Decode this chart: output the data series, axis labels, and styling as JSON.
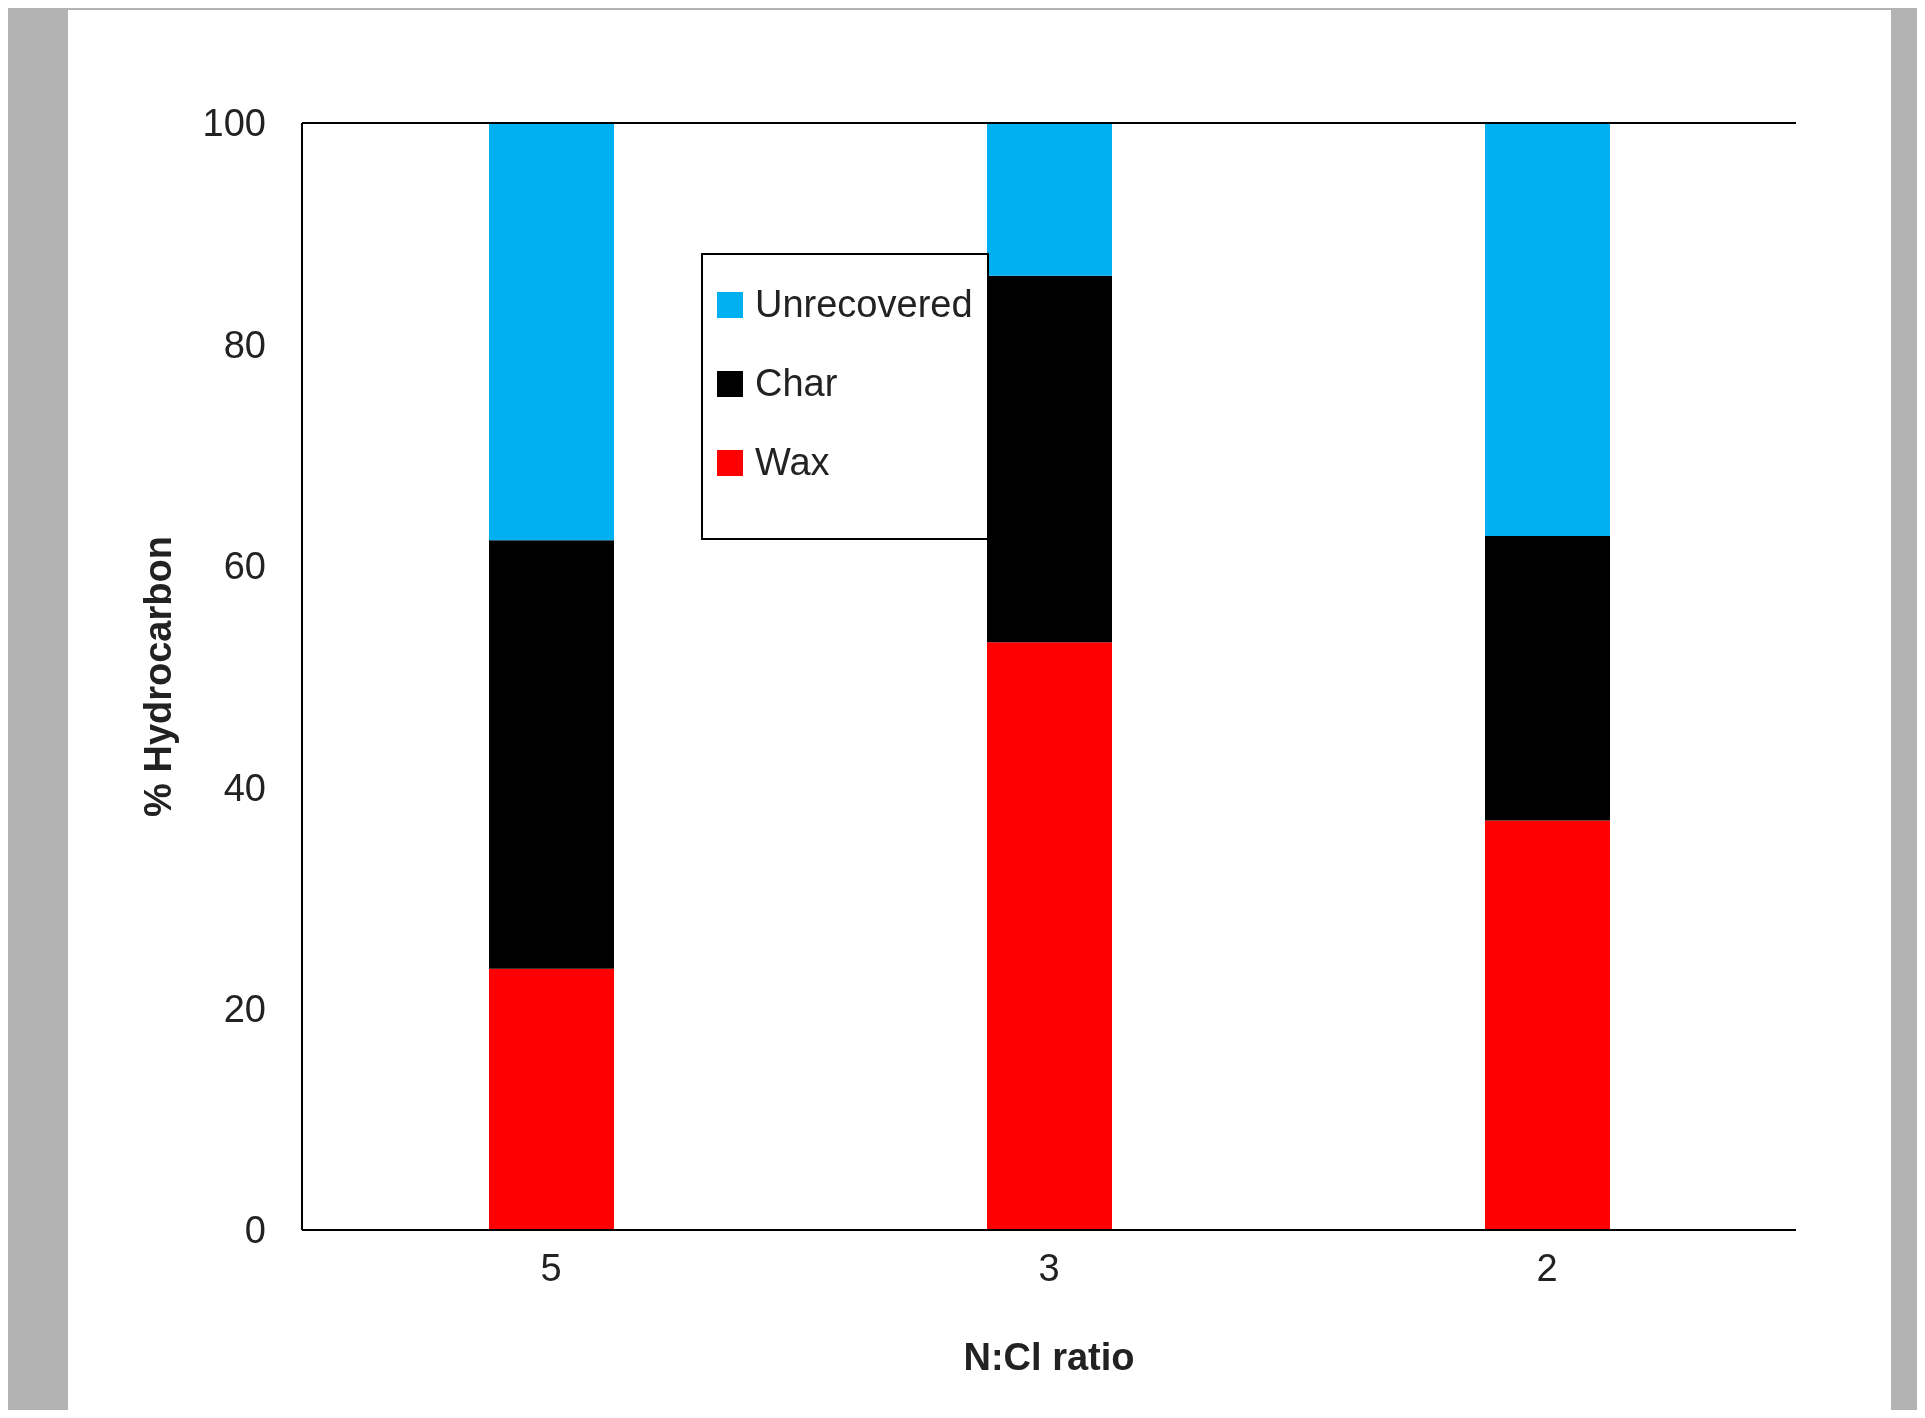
{
  "chart_data": {
    "type": "bar",
    "stacked": true,
    "xlabel": "N:Cl ratio",
    "ylabel": "% Hydrocarbon",
    "categories": [
      "5",
      "3",
      "2"
    ],
    "series": [
      {
        "name": "Wax",
        "color": "#ff0000",
        "values": [
          23.6,
          53.1,
          37.0
        ]
      },
      {
        "name": "Char",
        "color": "#000000",
        "values": [
          38.7,
          33.1,
          25.7
        ]
      },
      {
        "name": "Unrecovered",
        "color": "#00b0f0",
        "values": [
          37.7,
          13.8,
          37.3
        ]
      }
    ],
    "ylim": [
      0,
      100
    ],
    "yticks": [
      0,
      20,
      40,
      60,
      80,
      100
    ],
    "grid": false,
    "legend": "top left"
  }
}
